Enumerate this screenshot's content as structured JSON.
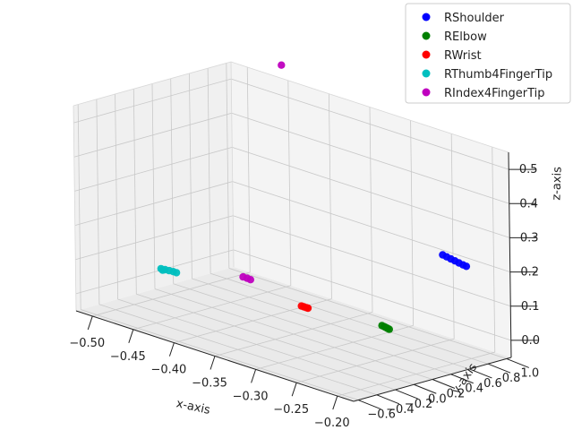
{
  "chart_data": {
    "type": "scatter",
    "projection": "3d",
    "grid": true,
    "legend_position": "top-right",
    "xlabel": "x-axis",
    "ylabel": "y-axis",
    "zlabel": "z-axis",
    "xlim": [
      -0.52,
      -0.18
    ],
    "ylim": [
      -0.65,
      1.05
    ],
    "zlim": [
      -0.05,
      0.55
    ],
    "xticks": [
      "−0.50",
      "−0.45",
      "−0.40",
      "−0.35",
      "−0.30",
      "−0.25",
      "−0.20"
    ],
    "yticks": [
      "−0.6",
      "−0.4",
      "−0.2",
      "0.0",
      "0.2",
      "0.4",
      "0.6",
      "0.8",
      "1.0"
    ],
    "zticks": [
      "0.0",
      "0.1",
      "0.2",
      "0.3",
      "0.4",
      "0.5"
    ],
    "series": [
      {
        "name": "RShoulder",
        "color": "#0000ff",
        "points": [
          [
            -0.225,
            0.72,
            0.24
          ],
          [
            -0.22,
            0.72,
            0.238
          ],
          [
            -0.215,
            0.72,
            0.236
          ],
          [
            -0.21,
            0.72,
            0.234
          ],
          [
            -0.205,
            0.72,
            0.232
          ],
          [
            -0.2,
            0.72,
            0.23
          ],
          [
            -0.196,
            0.72,
            0.229
          ]
        ]
      },
      {
        "name": "RElbow",
        "color": "#008000",
        "points": [
          [
            -0.255,
            0.32,
            0.04
          ],
          [
            -0.252,
            0.32,
            0.039
          ],
          [
            -0.25,
            0.32,
            0.038
          ],
          [
            -0.248,
            0.32,
            0.037
          ],
          [
            -0.246,
            0.32,
            0.036
          ]
        ]
      },
      {
        "name": "RWrist",
        "color": "#ff0000",
        "points": [
          [
            -0.34,
            0.2,
            0.04
          ],
          [
            -0.337,
            0.2,
            0.04
          ],
          [
            -0.334,
            0.2,
            0.04
          ],
          [
            -0.332,
            0.2,
            0.04
          ]
        ]
      },
      {
        "name": "RThumb4FingerTip",
        "color": "#00bfbf",
        "points": [
          [
            -0.495,
            0.05,
            0.04
          ],
          [
            -0.49,
            0.05,
            0.041
          ],
          [
            -0.485,
            0.05,
            0.042
          ],
          [
            -0.48,
            0.05,
            0.043
          ],
          [
            -0.476,
            0.05,
            0.043
          ],
          [
            -0.493,
            0.05,
            0.037
          ]
        ]
      },
      {
        "name": "RIndex4FingerTip",
        "color": "#bf00bf",
        "points": [
          [
            -0.425,
            0.32,
            0.05
          ],
          [
            -0.42,
            0.32,
            0.05
          ],
          [
            -0.416,
            0.32,
            0.049
          ],
          [
            -0.45,
            0.98,
            0.6
          ]
        ]
      }
    ]
  }
}
